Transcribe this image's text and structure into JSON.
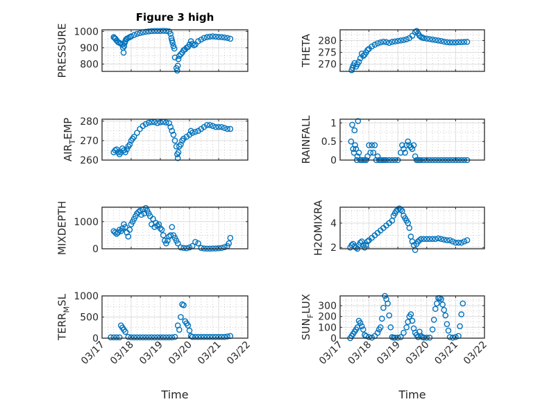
{
  "figure": {
    "title": "Figure 3 high",
    "marker_color": "#0072BD",
    "x_axis_label": "Time"
  },
  "chart_data": [
    {
      "type": "scatter",
      "id": "pressure",
      "title": "Figure 3 high",
      "ylabel": "PRESSURE",
      "ylabel_main": "PRESSURE",
      "ylabel_sub": "",
      "ylabel_rest": "",
      "ylim": [
        755,
        1010
      ],
      "yticks": [
        800,
        900,
        1000
      ],
      "yticklabels": [
        "800",
        "900",
        "1000"
      ],
      "xlim": [
        "03/17",
        "03/22"
      ],
      "xticks": [
        "03/17",
        "03/18",
        "03/19",
        "03/20",
        "03/21",
        "03/22"
      ],
      "grid": true,
      "minor_grid": true,
      "x": [
        0.4,
        0.43,
        0.46,
        0.5,
        0.55,
        0.6,
        0.65,
        0.7,
        0.72,
        0.74,
        0.76,
        0.78,
        0.8,
        0.82,
        0.85,
        0.9,
        0.95,
        1.0,
        1.1,
        1.2,
        1.3,
        1.4,
        1.5,
        1.6,
        1.7,
        1.8,
        1.9,
        2.0,
        2.1,
        2.2,
        2.3,
        2.35,
        2.38,
        2.4,
        2.42,
        2.45,
        2.48,
        2.5,
        2.55,
        2.58,
        2.6,
        2.62,
        2.65,
        2.7,
        2.75,
        2.8,
        2.85,
        2.9,
        2.95,
        3.0,
        3.05,
        3.1,
        3.15,
        3.2,
        3.3,
        3.4,
        3.5,
        3.6,
        3.7,
        3.8,
        3.9,
        4.0,
        4.1,
        4.2,
        4.3,
        4.4
      ],
      "y": [
        965,
        960,
        955,
        945,
        935,
        930,
        925,
        920,
        900,
        870,
        910,
        930,
        940,
        950,
        955,
        960,
        965,
        970,
        978,
        985,
        990,
        995,
        998,
        1000,
        1002,
        1003,
        1003,
        1003,
        1004,
        1003,
        1000,
        985,
        960,
        945,
        930,
        910,
        895,
        840,
        775,
        760,
        790,
        830,
        850,
        860,
        870,
        885,
        890,
        900,
        905,
        920,
        940,
        925,
        915,
        920,
        940,
        950,
        960,
        965,
        968,
        970,
        968,
        966,
        965,
        963,
        960,
        955
      ]
    },
    {
      "type": "scatter",
      "id": "theta",
      "ylabel": "THETA",
      "ylabel_main": "THETA",
      "ylabel_sub": "",
      "ylabel_rest": "",
      "ylim": [
        267,
        284.5
      ],
      "yticks": [
        270,
        275,
        280
      ],
      "yticklabels": [
        "270",
        "275",
        "280"
      ],
      "xlim": [
        "03/17",
        "03/22"
      ],
      "xticks": [
        "03/17",
        "03/18",
        "03/19",
        "03/20",
        "03/21",
        "03/22"
      ],
      "grid": true,
      "minor_grid": true,
      "x": [
        0.4,
        0.43,
        0.46,
        0.5,
        0.55,
        0.6,
        0.65,
        0.7,
        0.75,
        0.8,
        0.85,
        0.9,
        0.95,
        1.0,
        1.1,
        1.2,
        1.3,
        1.4,
        1.5,
        1.6,
        1.7,
        1.8,
        1.9,
        2.0,
        2.1,
        2.2,
        2.3,
        2.4,
        2.5,
        2.6,
        2.65,
        2.7,
        2.75,
        2.8,
        2.85,
        2.9,
        3.0,
        3.1,
        3.2,
        3.3,
        3.4,
        3.5,
        3.6,
        3.7,
        3.8,
        3.9,
        4.0,
        4.1,
        4.2,
        4.3,
        4.4
      ],
      "y": [
        267.5,
        268.5,
        269.5,
        270.5,
        269,
        270,
        271,
        272.5,
        274.5,
        273.5,
        274,
        275,
        276,
        276.5,
        277.5,
        278.2,
        278.8,
        279.2,
        279.5,
        279.3,
        279.0,
        279.4,
        279.6,
        279.8,
        280.0,
        280.2,
        280.5,
        281,
        282,
        283.5,
        284,
        283,
        282,
        281.5,
        281.2,
        281,
        280.8,
        280.6,
        280.4,
        280.2,
        280,
        279.8,
        279.5,
        279.3,
        279.2,
        279.2,
        279.2,
        279.3,
        279.3,
        279.4,
        279.4
      ]
    },
    {
      "type": "scatter",
      "id": "air_temp",
      "ylabel": "AIR_TEMP",
      "ylabel_main": "AIR",
      "ylabel_sub": "T",
      "ylabel_rest": "EMP",
      "ylim": [
        260,
        281
      ],
      "yticks": [
        260,
        270,
        280
      ],
      "yticklabels": [
        "260",
        "270",
        "280"
      ],
      "xlim": [
        "03/17",
        "03/22"
      ],
      "xticks": [
        "03/17",
        "03/18",
        "03/19",
        "03/20",
        "03/21",
        "03/22"
      ],
      "grid": true,
      "minor_grid": true,
      "x": [
        0.4,
        0.45,
        0.5,
        0.55,
        0.6,
        0.65,
        0.7,
        0.75,
        0.8,
        0.85,
        0.9,
        0.95,
        1.0,
        1.05,
        1.1,
        1.2,
        1.3,
        1.4,
        1.5,
        1.6,
        1.7,
        1.8,
        1.9,
        2.0,
        2.1,
        2.2,
        2.3,
        2.35,
        2.4,
        2.45,
        2.5,
        2.55,
        2.58,
        2.6,
        2.62,
        2.65,
        2.7,
        2.75,
        2.8,
        2.9,
        3.0,
        3.05,
        3.1,
        3.2,
        3.3,
        3.4,
        3.5,
        3.6,
        3.7,
        3.8,
        3.9,
        4.0,
        4.1,
        4.2,
        4.3,
        4.4
      ],
      "y": [
        264,
        265,
        265.5,
        264,
        263,
        264,
        266,
        265,
        264,
        265.5,
        267,
        268,
        270,
        271,
        272,
        274,
        276,
        277.5,
        278.5,
        279.2,
        279.5,
        279.5,
        279,
        279.4,
        279.6,
        279.3,
        279,
        277,
        275,
        273,
        270,
        267,
        263,
        261,
        264,
        267,
        268,
        270,
        271,
        272,
        273,
        275,
        274,
        274.5,
        275,
        276,
        277,
        278,
        278,
        277.5,
        277,
        277,
        277,
        276.5,
        276,
        276
      ]
    },
    {
      "type": "scatter",
      "id": "rainfall",
      "ylabel": "RAINFALL",
      "ylabel_main": "RAINFALL",
      "ylabel_sub": "",
      "ylabel_rest": "",
      "ylim": [
        0,
        1.1
      ],
      "yticks": [
        0,
        0.5,
        1
      ],
      "yticklabels": [
        "0",
        "0.5",
        "1"
      ],
      "xlim": [
        "03/17",
        "03/22"
      ],
      "xticks": [
        "03/17",
        "03/18",
        "03/19",
        "03/20",
        "03/21",
        "03/22"
      ],
      "grid": true,
      "minor_grid": true,
      "x": [
        0.38,
        0.42,
        0.45,
        0.48,
        0.5,
        0.52,
        0.55,
        0.58,
        0.6,
        0.62,
        0.65,
        0.7,
        0.75,
        0.8,
        0.85,
        0.9,
        0.95,
        1.0,
        1.05,
        1.1,
        1.15,
        1.2,
        1.25,
        1.3,
        1.35,
        1.4,
        1.45,
        1.5,
        1.55,
        1.6,
        1.7,
        1.8,
        1.9,
        2.0,
        2.1,
        2.15,
        2.2,
        2.25,
        2.3,
        2.35,
        2.4,
        2.45,
        2.5,
        2.55,
        2.6,
        2.65,
        2.7,
        2.75,
        2.8,
        2.9,
        3.0,
        3.1,
        3.2,
        3.3,
        3.4,
        3.5,
        3.6,
        3.7,
        3.8,
        3.9,
        4.0,
        4.1,
        4.2,
        4.3,
        4.4
      ],
      "y": [
        0.5,
        0.95,
        0.3,
        0.2,
        0.8,
        0.4,
        0.3,
        0,
        0.1,
        1.05,
        0.2,
        0,
        0,
        0,
        0,
        0,
        0.1,
        0.4,
        0.2,
        0.4,
        0.2,
        0.4,
        0,
        0.1,
        0,
        0,
        0,
        0,
        0,
        0,
        0,
        0,
        0,
        0,
        0.2,
        0.4,
        0.3,
        0.2,
        0.4,
        0.5,
        0.4,
        0.35,
        0.3,
        0.4,
        0.1,
        0,
        0,
        0,
        0,
        0,
        0,
        0,
        0,
        0,
        0,
        0,
        0,
        0,
        0,
        0,
        0,
        0,
        0,
        0,
        0
      ]
    },
    {
      "type": "scatter",
      "id": "mixdepth",
      "ylabel": "MIXDEPTH",
      "ylabel_main": "MIXDEPTH",
      "ylabel_sub": "",
      "ylabel_rest": "",
      "ylim": [
        0,
        1530
      ],
      "yticks": [
        0,
        1000
      ],
      "yticklabels": [
        "0",
        "1000"
      ],
      "xlim": [
        "03/17",
        "03/22"
      ],
      "xticks": [
        "03/17",
        "03/18",
        "03/19",
        "03/20",
        "03/21",
        "03/22"
      ],
      "grid": true,
      "minor_grid": true,
      "x": [
        0.4,
        0.45,
        0.5,
        0.55,
        0.6,
        0.65,
        0.7,
        0.75,
        0.8,
        0.85,
        0.9,
        0.95,
        1.0,
        1.05,
        1.1,
        1.15,
        1.2,
        1.25,
        1.3,
        1.35,
        1.4,
        1.45,
        1.5,
        1.55,
        1.6,
        1.65,
        1.7,
        1.75,
        1.8,
        1.85,
        1.9,
        1.95,
        2.0,
        2.05,
        2.1,
        2.15,
        2.2,
        2.25,
        2.3,
        2.35,
        2.4,
        2.45,
        2.5,
        2.55,
        2.6,
        2.7,
        2.8,
        2.9,
        3.0,
        3.1,
        3.2,
        3.3,
        3.4,
        3.5,
        3.6,
        3.7,
        3.8,
        3.9,
        4.0,
        4.1,
        4.2,
        4.3,
        4.35,
        4.4
      ],
      "y": [
        650,
        600,
        550,
        600,
        700,
        650,
        750,
        900,
        800,
        600,
        450,
        700,
        900,
        1000,
        1100,
        1200,
        1300,
        1350,
        1400,
        1250,
        1450,
        1300,
        1500,
        1400,
        1300,
        1200,
        900,
        1100,
        800,
        950,
        850,
        900,
        750,
        700,
        500,
        300,
        200,
        300,
        450,
        500,
        800,
        500,
        400,
        300,
        200,
        50,
        30,
        20,
        50,
        100,
        250,
        200,
        30,
        10,
        5,
        5,
        10,
        10,
        20,
        30,
        60,
        100,
        200,
        400
      ]
    },
    {
      "type": "scatter",
      "id": "h2omixra",
      "ylabel": "H2OMIXRA",
      "ylabel_main": "H2OMIXRA",
      "ylabel_sub": "",
      "ylabel_rest": "",
      "ylim": [
        1.9,
        5.3
      ],
      "yticks": [
        2,
        4
      ],
      "yticklabels": [
        "2",
        "4"
      ],
      "xlim": [
        "03/17",
        "03/22"
      ],
      "xticks": [
        "03/17",
        "03/18",
        "03/19",
        "03/20",
        "03/21",
        "03/22"
      ],
      "grid": true,
      "minor_grid": true,
      "x": [
        0.35,
        0.4,
        0.45,
        0.5,
        0.55,
        0.6,
        0.65,
        0.7,
        0.75,
        0.8,
        0.85,
        0.9,
        0.95,
        1.0,
        1.1,
        1.2,
        1.3,
        1.4,
        1.5,
        1.6,
        1.7,
        1.8,
        1.85,
        1.9,
        1.95,
        2.0,
        2.05,
        2.1,
        2.15,
        2.2,
        2.25,
        2.3,
        2.35,
        2.4,
        2.45,
        2.5,
        2.55,
        2.6,
        2.65,
        2.7,
        2.75,
        2.8,
        2.9,
        3.0,
        3.1,
        3.2,
        3.3,
        3.4,
        3.5,
        3.6,
        3.7,
        3.8,
        3.9,
        4.0,
        4.1,
        4.2,
        4.3,
        4.4
      ],
      "y": [
        2.0,
        2.2,
        2.3,
        2.1,
        2.0,
        1.9,
        2.2,
        2.4,
        2.5,
        2.2,
        2.0,
        2.2,
        2.5,
        2.6,
        2.8,
        3.0,
        3.2,
        3.4,
        3.6,
        3.8,
        4.0,
        4.2,
        4.6,
        4.8,
        5.0,
        5.1,
        5.2,
        5.1,
        5.0,
        4.6,
        4.4,
        4.2,
        4.0,
        3.6,
        2.9,
        2.5,
        2.2,
        1.8,
        2.3,
        2.5,
        2.6,
        2.7,
        2.7,
        2.7,
        2.7,
        2.7,
        2.7,
        2.75,
        2.7,
        2.65,
        2.6,
        2.6,
        2.5,
        2.4,
        2.4,
        2.4,
        2.5,
        2.6
      ]
    },
    {
      "type": "scatter",
      "id": "terr_msl",
      "ylabel": "TERR_MSL",
      "ylabel_main": "TERR",
      "ylabel_sub": "M",
      "ylabel_rest": "SL",
      "ylim": [
        0,
        1000
      ],
      "yticks": [
        0,
        500,
        1000
      ],
      "yticklabels": [
        "0",
        "500",
        "1000"
      ],
      "xlim": [
        "03/17",
        "03/22"
      ],
      "xticks": [
        "03/17",
        "03/18",
        "03/19",
        "03/20",
        "03/21",
        "03/22"
      ],
      "grid": true,
      "minor_grid": true,
      "x": [
        0.3,
        0.4,
        0.5,
        0.6,
        0.65,
        0.7,
        0.75,
        0.8,
        0.9,
        1.0,
        1.1,
        1.2,
        1.3,
        1.4,
        1.5,
        1.6,
        1.7,
        1.8,
        1.9,
        2.0,
        2.1,
        2.2,
        2.3,
        2.4,
        2.5,
        2.6,
        2.65,
        2.7,
        2.75,
        2.8,
        2.85,
        2.9,
        2.95,
        3.0,
        3.05,
        3.1,
        3.2,
        3.3,
        3.4,
        3.5,
        3.6,
        3.7,
        3.8,
        3.9,
        4.0,
        4.1,
        4.2,
        4.3,
        4.4
      ],
      "y": [
        20,
        20,
        20,
        20,
        300,
        250,
        200,
        150,
        30,
        20,
        20,
        20,
        20,
        20,
        20,
        20,
        20,
        20,
        20,
        20,
        20,
        20,
        20,
        20,
        30,
        300,
        200,
        500,
        800,
        780,
        400,
        350,
        300,
        180,
        50,
        30,
        30,
        30,
        30,
        30,
        30,
        30,
        30,
        30,
        30,
        30,
        30,
        40,
        50
      ]
    },
    {
      "type": "scatter",
      "id": "sun_flux",
      "ylabel": "SUN_FLUX",
      "ylabel_main": "SUN",
      "ylabel_sub": "F",
      "ylabel_rest": "LUX",
      "ylim": [
        0,
        390
      ],
      "yticks": [
        0,
        100,
        200,
        300
      ],
      "yticklabels": [
        "0",
        "100",
        "200",
        "300"
      ],
      "xlim": [
        "03/17",
        "03/22"
      ],
      "xticks": [
        "03/17",
        "03/18",
        "03/19",
        "03/20",
        "03/21",
        "03/22"
      ],
      "grid": true,
      "minor_grid": true,
      "x": [
        0.35,
        0.4,
        0.45,
        0.5,
        0.55,
        0.6,
        0.65,
        0.7,
        0.75,
        0.8,
        0.85,
        0.9,
        1.0,
        1.1,
        1.2,
        1.3,
        1.35,
        1.4,
        1.45,
        1.5,
        1.55,
        1.6,
        1.65,
        1.7,
        1.75,
        1.8,
        1.85,
        1.9,
        2.0,
        2.1,
        2.2,
        2.3,
        2.35,
        2.4,
        2.45,
        2.5,
        2.55,
        2.6,
        2.65,
        2.7,
        2.75,
        2.8,
        2.85,
        2.9,
        3.0,
        3.1,
        3.2,
        3.25,
        3.3,
        3.35,
        3.4,
        3.45,
        3.5,
        3.55,
        3.6,
        3.65,
        3.7,
        3.75,
        3.8,
        3.9,
        4.0,
        4.1,
        4.15,
        4.2,
        4.25
      ],
      "y": [
        0,
        20,
        40,
        60,
        80,
        100,
        160,
        140,
        110,
        80,
        30,
        20,
        10,
        5,
        20,
        50,
        80,
        100,
        180,
        280,
        390,
        360,
        320,
        210,
        100,
        10,
        5,
        5,
        5,
        10,
        50,
        100,
        150,
        200,
        220,
        160,
        90,
        50,
        30,
        10,
        60,
        20,
        10,
        5,
        5,
        5,
        80,
        170,
        270,
        320,
        370,
        370,
        360,
        310,
        260,
        210,
        130,
        70,
        10,
        5,
        10,
        20,
        110,
        220,
        320
      ]
    }
  ]
}
